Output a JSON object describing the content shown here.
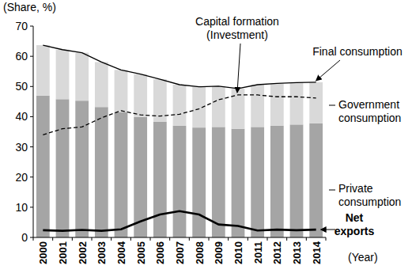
{
  "chart_data": {
    "type": "bar",
    "stacked": true,
    "y_label": "(Share, %)",
    "x_label": "(Year)",
    "categories": [
      "2000",
      "2001",
      "2002",
      "2003",
      "2004",
      "2005",
      "2006",
      "2007",
      "2008",
      "2009",
      "2010",
      "2011",
      "2012",
      "2013",
      "2014"
    ],
    "ylim": [
      0,
      70
    ],
    "yticks": [
      0,
      10,
      20,
      30,
      40,
      50,
      60,
      70
    ],
    "grid": false,
    "series": [
      {
        "name": "Private consumption",
        "type": "bar",
        "color": "#a5a5a5",
        "values": [
          47.0,
          45.8,
          45.3,
          43.2,
          41.5,
          39.9,
          38.3,
          37.0,
          36.4,
          36.6,
          36.0,
          36.6,
          37.0,
          37.4,
          37.8
        ]
      },
      {
        "name": "Government consumption",
        "type": "bar",
        "color": "#d9d9d9",
        "values": [
          16.7,
          16.4,
          15.9,
          14.9,
          14.0,
          14.2,
          14.1,
          13.6,
          13.5,
          13.5,
          13.3,
          14.0,
          14.0,
          13.9,
          13.6
        ]
      },
      {
        "name": "Final consumption",
        "type": "line",
        "line_style": "solid",
        "color": "#000000",
        "values": [
          63.7,
          62.2,
          61.2,
          58.1,
          55.5,
          54.1,
          52.4,
          50.6,
          49.9,
          50.1,
          49.3,
          50.6,
          51.0,
          51.3,
          51.4
        ]
      },
      {
        "name": "Capital formation (Investment)",
        "type": "line",
        "line_style": "dashed",
        "color": "#000000",
        "values": [
          34.0,
          36.0,
          36.6,
          39.6,
          42.0,
          40.6,
          40.2,
          40.8,
          42.6,
          45.6,
          47.2,
          47.2,
          46.6,
          46.6,
          46.2
        ]
      },
      {
        "name": "Net exports",
        "type": "line",
        "line_style": "thick",
        "color": "#000000",
        "values": [
          2.4,
          2.2,
          2.5,
          2.2,
          2.7,
          5.3,
          7.6,
          8.7,
          7.6,
          4.3,
          3.8,
          2.3,
          2.6,
          2.4,
          2.6
        ]
      }
    ]
  }
}
